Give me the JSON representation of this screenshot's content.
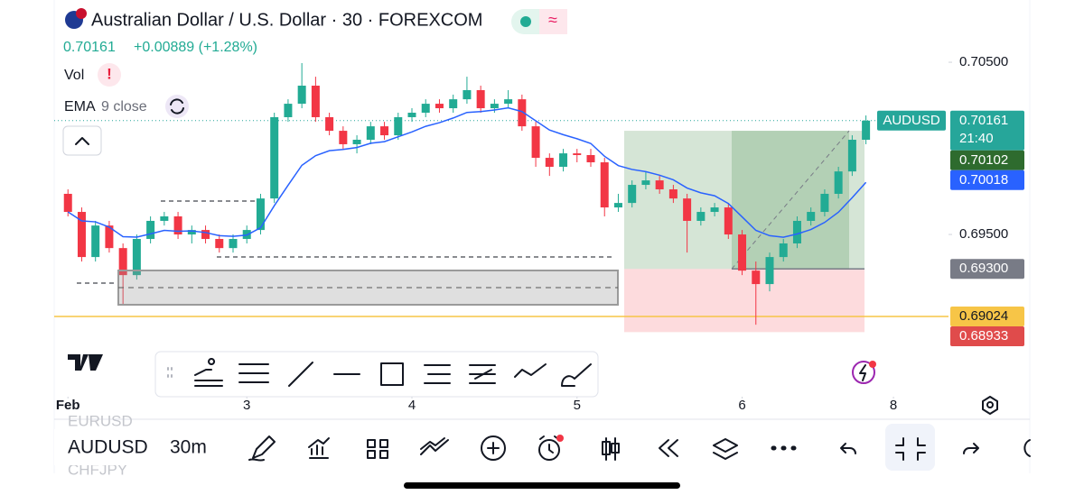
{
  "header": {
    "title": "Australian Dollar / U.S. Dollar · 30 · FOREXCOM",
    "price": "0.70161",
    "change": "+0.00889 (+1.28%)",
    "vol": "Vol",
    "ema": "EMA",
    "ema_params": "9 close"
  },
  "chart_data": {
    "type": "candlestick",
    "ohlc": [
      [
        0.69736,
        0.69762,
        0.69605,
        0.69631
      ],
      [
        0.69631,
        0.69657,
        0.69343,
        0.69369
      ],
      [
        0.69369,
        0.69579,
        0.69343,
        0.69552
      ],
      [
        0.69552,
        0.69579,
        0.69395,
        0.69421
      ],
      [
        0.69421,
        0.69448,
        0.69092,
        0.69264
      ],
      [
        0.69264,
        0.695,
        0.69238,
        0.69474
      ],
      [
        0.69474,
        0.69605,
        0.69448,
        0.69579
      ],
      [
        0.69579,
        0.69631,
        0.69552,
        0.69605
      ],
      [
        0.69605,
        0.69631,
        0.69474,
        0.695
      ],
      [
        0.695,
        0.69552,
        0.69448,
        0.69526
      ],
      [
        0.69526,
        0.69552,
        0.69448,
        0.69474
      ],
      [
        0.69474,
        0.695,
        0.69395,
        0.69421
      ],
      [
        0.69421,
        0.695,
        0.69395,
        0.69474
      ],
      [
        0.69474,
        0.69552,
        0.69448,
        0.69526
      ],
      [
        0.69526,
        0.69736,
        0.695,
        0.69709
      ],
      [
        0.69709,
        0.70207,
        0.69683,
        0.70181
      ],
      [
        0.70181,
        0.70285,
        0.70154,
        0.70259
      ],
      [
        0.70259,
        0.70495,
        0.70233,
        0.70364
      ],
      [
        0.70364,
        0.70416,
        0.70154,
        0.70181
      ],
      [
        0.70181,
        0.70207,
        0.70076,
        0.70102
      ],
      [
        0.70102,
        0.70128,
        0.69997,
        0.70024
      ],
      [
        0.70024,
        0.70076,
        0.69971,
        0.7005
      ],
      [
        0.7005,
        0.70154,
        0.70024,
        0.70128
      ],
      [
        0.70128,
        0.70154,
        0.7005,
        0.70076
      ],
      [
        0.70076,
        0.70207,
        0.7005,
        0.70181
      ],
      [
        0.70181,
        0.70233,
        0.70154,
        0.70207
      ],
      [
        0.70207,
        0.70285,
        0.70181,
        0.70259
      ],
      [
        0.70259,
        0.70285,
        0.70207,
        0.70233
      ],
      [
        0.70233,
        0.70312,
        0.70207,
        0.70285
      ],
      [
        0.70285,
        0.70416,
        0.70259,
        0.70338
      ],
      [
        0.70338,
        0.70364,
        0.70207,
        0.70233
      ],
      [
        0.70233,
        0.70285,
        0.70207,
        0.70259
      ],
      [
        0.70259,
        0.70338,
        0.70233,
        0.70285
      ],
      [
        0.70285,
        0.70312,
        0.70102,
        0.70128
      ],
      [
        0.70128,
        0.70154,
        0.69893,
        0.69945
      ],
      [
        0.69945,
        0.69971,
        0.6984,
        0.69893
      ],
      [
        0.69893,
        0.69997,
        0.69866,
        0.69971
      ],
      [
        0.69971,
        0.69997,
        0.69919,
        0.69961
      ],
      [
        0.69961,
        0.69997,
        0.69893,
        0.69919
      ],
      [
        0.69919,
        0.69945,
        0.69605,
        0.69657
      ],
      [
        0.69657,
        0.69736,
        0.69631,
        0.69683
      ],
      [
        0.69683,
        0.69814,
        0.69657,
        0.69788
      ],
      [
        0.69788,
        0.69866,
        0.69762,
        0.69814
      ],
      [
        0.69814,
        0.6984,
        0.69736,
        0.69762
      ],
      [
        0.69762,
        0.69788,
        0.69683,
        0.69709
      ],
      [
        0.69709,
        0.69736,
        0.69395,
        0.69579
      ],
      [
        0.69579,
        0.69657,
        0.69552,
        0.69631
      ],
      [
        0.69631,
        0.69683,
        0.69605,
        0.69657
      ],
      [
        0.69657,
        0.69683,
        0.69474,
        0.695
      ],
      [
        0.695,
        0.69526,
        0.69264,
        0.6929
      ],
      [
        0.6929,
        0.69343,
        0.68976,
        0.69212
      ],
      [
        0.69212,
        0.69395,
        0.6917,
        0.69369
      ],
      [
        0.69369,
        0.69474,
        0.69343,
        0.69448
      ],
      [
        0.69448,
        0.69605,
        0.69421,
        0.69579
      ],
      [
        0.69579,
        0.69657,
        0.69552,
        0.69631
      ],
      [
        0.69631,
        0.69762,
        0.69605,
        0.69736
      ],
      [
        0.69736,
        0.69893,
        0.69709,
        0.69866
      ],
      [
        0.69866,
        0.70076,
        0.6984,
        0.7005
      ],
      [
        0.7005,
        0.70191,
        0.70024,
        0.70161
      ]
    ],
    "up_color": "#22ab94",
    "down_color": "#f23645",
    "ema_color": "#2962ff",
    "ylim": [
      0.68558,
      0.70652
    ],
    "yticks": [
      {
        "value": 0.705,
        "label": "0.70500"
      },
      {
        "value": 0.695,
        "label": "0.69500"
      }
    ],
    "xlim": [
      -1,
      64
    ],
    "xticks": [
      {
        "value": 0,
        "label": "Feb"
      },
      {
        "value": 13,
        "label": "3"
      },
      {
        "value": 25,
        "label": "4"
      },
      {
        "value": 37,
        "label": "5"
      },
      {
        "value": 49,
        "label": "6"
      },
      {
        "value": 60,
        "label": "8"
      }
    ],
    "price_tags": [
      {
        "value": 0.70161,
        "label": "0.70161",
        "symbol": "AUDUSD",
        "countdown": "21:40",
        "color": "#26a69a"
      },
      {
        "value": 0.70102,
        "label": "0.70102",
        "color": "#2e6b2e"
      },
      {
        "value": 0.70018,
        "label": "0.70018",
        "color": "#2962ff"
      },
      {
        "value": 0.693,
        "label": "0.69300",
        "color": "#787b86"
      },
      {
        "value": 0.69024,
        "label": "0.69024",
        "color": "#f7c547"
      },
      {
        "value": 0.68933,
        "label": "0.68933",
        "color": "#e04b4b"
      }
    ]
  },
  "toolbar": {
    "symbol": "AUDUSD",
    "interval": "30m",
    "prev_symbol": "EURUSD",
    "next_symbol": "CHFJPY"
  }
}
